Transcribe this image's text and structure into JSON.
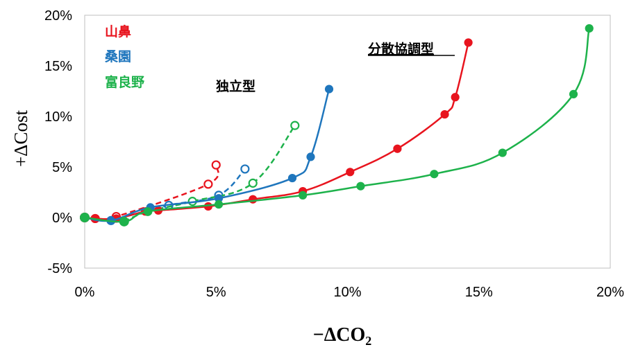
{
  "chart_data": {
    "type": "line",
    "xlabel": "−ΔCO₂",
    "ylabel": "+ΔCost",
    "xlim": [
      0,
      20
    ],
    "ylim": [
      -5,
      20
    ],
    "x_ticks": [
      "0%",
      "5%",
      "10%",
      "15%",
      "20%"
    ],
    "y_ticks": [
      "-5%",
      "0%",
      "5%",
      "10%",
      "15%",
      "20%"
    ],
    "grid": false,
    "legend_position": "top-left",
    "legend": [
      "山鼻",
      "桑園",
      "富良野"
    ],
    "annotations": {
      "independent": "独立型",
      "distributed": "分散協調型"
    },
    "colors": {
      "山鼻": "#e8141e",
      "桑園": "#1f76bd",
      "富良野": "#1db24b"
    },
    "series": [
      {
        "name": "山鼻",
        "mode": "独立型",
        "style": "dashed",
        "x": [
          0.4,
          1.2,
          4.7,
          5.0
        ],
        "y": [
          -0.1,
          0.1,
          3.3,
          5.2
        ]
      },
      {
        "name": "桑園",
        "mode": "独立型",
        "style": "dashed",
        "x": [
          1.0,
          3.2,
          5.1,
          6.1
        ],
        "y": [
          -0.3,
          1.2,
          2.2,
          4.8
        ]
      },
      {
        "name": "富良野",
        "mode": "独立型",
        "style": "dashed",
        "x": [
          1.5,
          2.4,
          4.1,
          6.4,
          8.0
        ],
        "y": [
          -0.4,
          0.6,
          1.6,
          3.4,
          9.1
        ]
      },
      {
        "name": "山鼻",
        "mode": "分散協調型",
        "style": "solid",
        "x": [
          0,
          0.4,
          1.2,
          2.3,
          2.8,
          4.7,
          6.4,
          8.3,
          10.1,
          11.9,
          13.7,
          14.1,
          14.6
        ],
        "y": [
          0,
          -0.1,
          -0.1,
          0.6,
          0.7,
          1.1,
          1.8,
          2.6,
          4.5,
          6.8,
          10.2,
          11.9,
          17.3
        ]
      },
      {
        "name": "桑園",
        "mode": "分散協調型",
        "style": "solid",
        "x": [
          0,
          1.0,
          2.5,
          5.1,
          7.9,
          8.6,
          9.3
        ],
        "y": [
          0,
          -0.3,
          1.0,
          1.9,
          3.9,
          6.0,
          12.7
        ]
      },
      {
        "name": "富良野",
        "mode": "分散協調型",
        "style": "solid",
        "x": [
          0,
          1.5,
          2.4,
          5.1,
          8.3,
          10.5,
          13.3,
          15.9,
          18.6,
          19.2
        ],
        "y": [
          0,
          -0.4,
          0.6,
          1.3,
          2.2,
          3.1,
          4.3,
          6.4,
          12.2,
          18.7
        ]
      }
    ]
  }
}
